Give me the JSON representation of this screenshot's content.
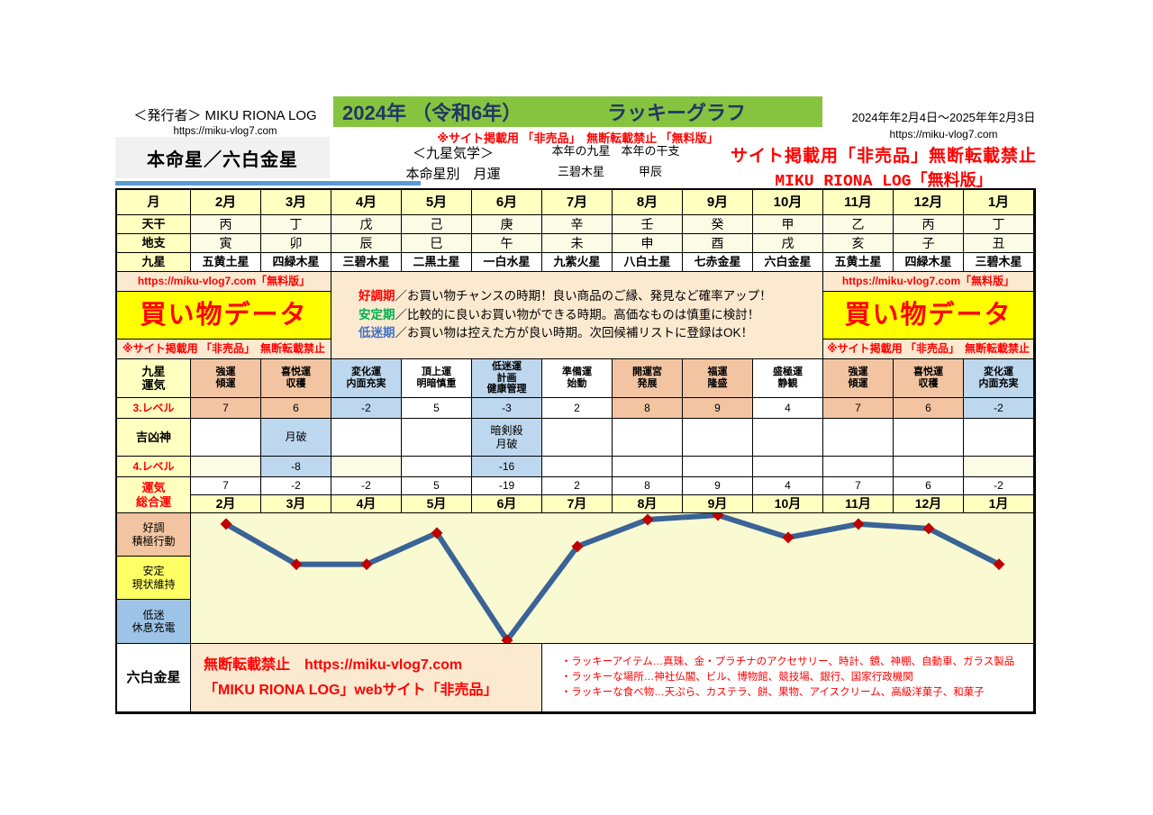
{
  "colors": {
    "banner_green": "#86C440",
    "banner_text_navy": "#1F3864",
    "underline_blue": "#5B9BD5",
    "pale_yellow": "#FFFFC0",
    "ivory": "#FCFCE6",
    "salmon": "#F2C4A2",
    "light_blue": "#BDD7EE",
    "mid_blue": "#9DC3E6",
    "bright_yellow": "#FFFF66",
    "highlight_yellow": "#FFFF00",
    "peach": "#FBE9D0",
    "chart_background": "#FAFAD2",
    "warning_red": "#FF0000",
    "term_green": "#00B050",
    "term_blue": "#4472C4",
    "line_blue": "#3A6396",
    "marker_red": "#C00000"
  },
  "header": {
    "publisher_label": "＜発行者＞  MIKU RIONA LOG",
    "publisher_url": "https://miku-vlog7.com",
    "honmei_box": "本命星／六白金星",
    "banner_year": "2024年 （令和6年）",
    "banner_title": "ラッキーグラフ",
    "banner_notice": "※サイト掲載用 「非売品」　無断転載禁止 「無料版」",
    "school_line1": "＜九星気学＞",
    "school_line2": "本命星別　月運",
    "year_star_label": "本年の九星",
    "year_star_value": "三碧木星",
    "year_eto_label": "本年の干支",
    "year_eto_value": "甲辰",
    "validity_range": "2024年年2月4日～2025年年2月3日",
    "validity_url": "https://miku-vlog7.com",
    "warning_line1": "サイト掲載用「非売品」無断転載禁止",
    "warning_line2": "MIKU RIONA LOG「無料版」"
  },
  "calendar": {
    "row_labels": {
      "month": "月",
      "tenkan": "天干",
      "chishi": "地支",
      "kyusei": "九星"
    },
    "months": [
      "2月",
      "3月",
      "4月",
      "5月",
      "6月",
      "7月",
      "8月",
      "9月",
      "10月",
      "11月",
      "12月",
      "1月"
    ],
    "tenkan": [
      "丙",
      "丁",
      "戊",
      "己",
      "庚",
      "辛",
      "壬",
      "癸",
      "甲",
      "乙",
      "丙",
      "丁"
    ],
    "chishi": [
      "寅",
      "卯",
      "辰",
      "巳",
      "午",
      "未",
      "申",
      "酉",
      "戌",
      "亥",
      "子",
      "丑"
    ],
    "kyusei": [
      "五黄土星",
      "四緑木星",
      "三碧木星",
      "二黒土星",
      "一白水星",
      "九紫火星",
      "八白土星",
      "七赤金星",
      "六白金星",
      "五黄土星",
      "四緑木星",
      "三碧木星"
    ]
  },
  "shopping_panel": {
    "url_note": "https://miku-vlog7.com「無料版」",
    "title": "買い物データ",
    "bottom_note": "※サイト掲載用 「非売品」　無断転載禁止",
    "legend": [
      {
        "term": "好調期",
        "color": "#FF0000",
        "text": "／お買い物チャンスの時期！良い商品のご縁、発見など確率アップ！"
      },
      {
        "term": "安定期",
        "color": "#00B050",
        "text": "／比較的に良いお買い物ができる時期。高価なものは慎重に検討！"
      },
      {
        "term": "低迷期",
        "color": "#4472C4",
        "text": "／お買い物は控えた方が良い時期。次回候補リストに登録はOK！"
      }
    ]
  },
  "fortune_table": {
    "labels": {
      "kyusei_unki": [
        "九星",
        "運気"
      ],
      "level3": "3.レベル",
      "kikkyoshin": "吉凶神",
      "level4": "4.レベル",
      "total": [
        "運気",
        "総合運"
      ]
    },
    "headers": [
      [
        "強運",
        "傾運"
      ],
      [
        "喜悦運",
        "収穫"
      ],
      [
        "変化運",
        "内面充実"
      ],
      [
        "頂上運",
        "明暗慎重"
      ],
      [
        "低迷運",
        "計画",
        "健康管理"
      ],
      [
        "準備運",
        "始動"
      ],
      [
        "開運宮",
        "発展"
      ],
      [
        "福運",
        "隆盛"
      ],
      [
        "盛極運",
        "静観"
      ],
      [
        "強運",
        "傾運"
      ],
      [
        "喜悦運",
        "収穫"
      ],
      [
        "変化運",
        "内面充実"
      ]
    ],
    "header_tones": [
      "salmon",
      "salmon",
      "blue",
      "white",
      "blue",
      "white",
      "salmon",
      "salmon",
      "white",
      "salmon",
      "salmon",
      "blue"
    ],
    "level3_values": [
      "7",
      "6",
      "-2",
      "5",
      "-3",
      "2",
      "8",
      "9",
      "4",
      "7",
      "6",
      "-2"
    ],
    "gods": [
      [],
      [
        "月破"
      ],
      [],
      [],
      [
        "暗剣殺",
        "月破"
      ],
      [],
      [],
      [],
      [],
      [],
      [],
      []
    ],
    "level4_values": [
      "",
      "-8",
      "",
      "",
      "-16",
      "",
      "",
      "",
      "",
      "",
      "",
      ""
    ],
    "level4_tones": [
      "ivory",
      "blue",
      "ivory",
      "white",
      "blue",
      "white",
      "white",
      "white",
      "white",
      "white",
      "white",
      "ivory"
    ],
    "total_values": [
      "7",
      "-2",
      "-2",
      "5",
      "-19",
      "2",
      "8",
      "9",
      "4",
      "7",
      "6",
      "-2"
    ]
  },
  "chart_data": {
    "type": "line",
    "categories": [
      "2月",
      "3月",
      "4月",
      "5月",
      "6月",
      "7月",
      "8月",
      "9月",
      "10月",
      "11月",
      "12月",
      "1月"
    ],
    "values": [
      7,
      -2,
      -2,
      5,
      -19,
      2,
      8,
      9,
      4,
      7,
      6,
      -2
    ],
    "title": "",
    "xlabel": "月",
    "ylabel": "運気総合運",
    "ylim": [
      -19,
      9
    ],
    "grid": false,
    "legend_position": "none",
    "line_color": "#3A6396",
    "marker": "diamond",
    "marker_color": "#C00000",
    "background": "#FAFAD2",
    "bands": [
      {
        "label": [
          "好調",
          "積極行動"
        ],
        "tone": "salmon"
      },
      {
        "label": [
          "安定",
          "現状維持"
        ],
        "tone": "byellow"
      },
      {
        "label": [
          "低迷",
          "休息充電"
        ],
        "tone": "mblue"
      }
    ]
  },
  "footer": {
    "star_label": "六白金星",
    "notice_line1": "無断転載禁止　https://miku-vlog7.com",
    "notice_line2": "「MIKU RIONA LOG」webサイト「非売品」",
    "lucky_lines": [
      "・ラッキーアイテム…真珠、金・プラチナのアクセサリー、時計、鏡、神棚、自動車、ガラス製品",
      "・ラッキーな場所…神社仏閣、ビル、博物館、競技場、銀行、国家行政機関",
      "・ラッキーな食べ物…天ぷら、カステラ、餅、果物、アイスクリーム、高級洋菓子、和菓子"
    ]
  }
}
